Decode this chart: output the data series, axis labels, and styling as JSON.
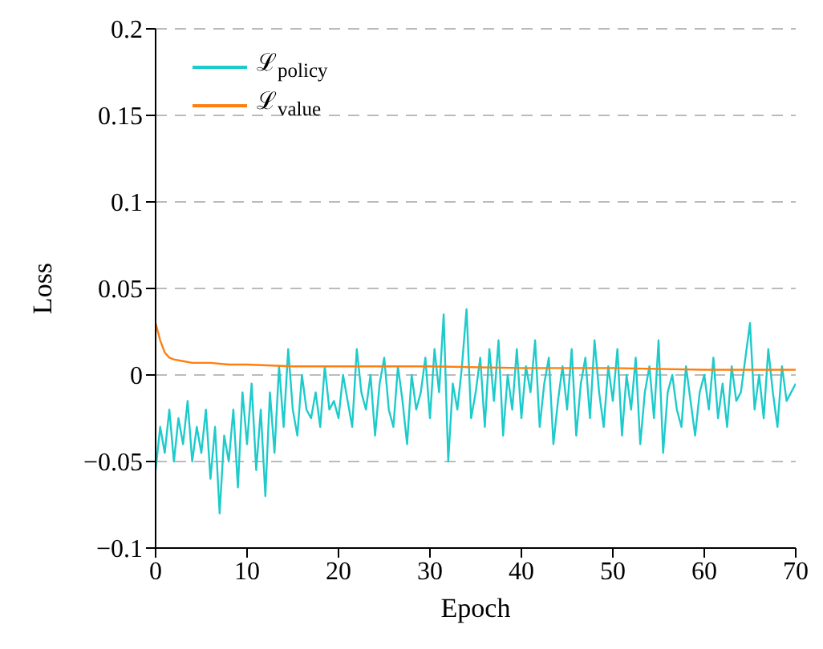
{
  "chart_data": {
    "type": "line",
    "xlabel": "Epoch",
    "ylabel": "Loss",
    "xlim": [
      0,
      70
    ],
    "ylim": [
      -0.1,
      0.2
    ],
    "xticks": [
      0,
      10,
      20,
      30,
      40,
      50,
      60,
      70
    ],
    "yticks": [
      {
        "value": -0.1,
        "label": "−0.1"
      },
      {
        "value": -0.05,
        "label": "−0.05"
      },
      0,
      0.05,
      0.1,
      0.15,
      0.2
    ],
    "grid": "y",
    "legend": "top left",
    "marker": "none",
    "line_style": "solid",
    "series": [
      {
        "name": "ℒ$_{policy}$",
        "color": "#1ecbcb",
        "x": [
          0,
          0.5,
          1,
          1.5,
          2,
          2.5,
          3,
          3.5,
          4,
          4.5,
          5,
          5.5,
          6,
          6.5,
          7,
          7.5,
          8,
          8.5,
          9,
          9.5,
          10,
          10.5,
          11,
          11.5,
          12,
          12.5,
          13,
          13.5,
          14,
          14.5,
          15,
          15.5,
          16,
          16.5,
          17,
          17.5,
          18,
          18.5,
          19,
          19.5,
          20,
          20.5,
          21,
          21.5,
          22,
          22.5,
          23,
          23.5,
          24,
          24.5,
          25,
          25.5,
          26,
          26.5,
          27,
          27.5,
          28,
          28.5,
          29,
          29.5,
          30,
          30.5,
          31,
          31.5,
          32,
          32.5,
          33,
          33.5,
          34,
          34.5,
          35,
          35.5,
          36,
          36.5,
          37,
          37.5,
          38,
          38.5,
          39,
          39.5,
          40,
          40.5,
          41,
          41.5,
          42,
          42.5,
          43,
          43.5,
          44,
          44.5,
          45,
          45.5,
          46,
          46.5,
          47,
          47.5,
          48,
          48.5,
          49,
          49.5,
          50,
          50.5,
          51,
          51.5,
          52,
          52.5,
          53,
          53.5,
          54,
          54.5,
          55,
          55.5,
          56,
          56.5,
          57,
          57.5,
          58,
          58.5,
          59,
          59.5,
          60,
          60.5,
          61,
          61.5,
          62,
          62.5,
          63,
          63.5,
          64,
          64.5,
          65,
          65.5,
          66,
          66.5,
          67,
          67.5,
          68,
          68.5,
          69,
          69.5,
          70
        ],
        "values": [
          -0.055,
          -0.03,
          -0.045,
          -0.02,
          -0.05,
          -0.025,
          -0.04,
          -0.015,
          -0.05,
          -0.03,
          -0.045,
          -0.02,
          -0.06,
          -0.03,
          -0.08,
          -0.035,
          -0.05,
          -0.02,
          -0.065,
          -0.01,
          -0.04,
          -0.005,
          -0.055,
          -0.02,
          -0.07,
          -0.01,
          -0.045,
          0.005,
          -0.03,
          0.015,
          -0.02,
          -0.035,
          0.0,
          -0.02,
          -0.025,
          -0.01,
          -0.03,
          0.005,
          -0.02,
          -0.015,
          -0.025,
          0.0,
          -0.015,
          -0.03,
          0.015,
          -0.01,
          -0.02,
          0.0,
          -0.035,
          -0.005,
          0.01,
          -0.02,
          -0.03,
          0.005,
          -0.015,
          -0.04,
          0.0,
          -0.02,
          -0.01,
          0.01,
          -0.025,
          0.015,
          -0.01,
          0.035,
          -0.05,
          -0.005,
          -0.02,
          0.005,
          0.038,
          -0.025,
          -0.01,
          0.01,
          -0.03,
          0.015,
          -0.015,
          0.02,
          -0.035,
          0.0,
          -0.02,
          0.015,
          -0.025,
          0.005,
          -0.01,
          0.02,
          -0.03,
          -0.005,
          0.01,
          -0.04,
          -0.015,
          0.005,
          -0.02,
          0.015,
          -0.035,
          -0.005,
          0.01,
          -0.025,
          0.02,
          -0.01,
          -0.03,
          0.005,
          -0.015,
          0.015,
          -0.035,
          0.0,
          -0.02,
          0.01,
          -0.04,
          -0.01,
          0.005,
          -0.025,
          0.02,
          -0.045,
          -0.01,
          0.0,
          -0.02,
          -0.03,
          0.005,
          -0.015,
          -0.035,
          -0.01,
          0.0,
          -0.02,
          0.01,
          -0.025,
          -0.005,
          -0.03,
          0.005,
          -0.015,
          -0.01,
          0.01,
          0.03,
          -0.02,
          0.0,
          -0.025,
          0.015,
          -0.01,
          -0.03,
          0.005,
          -0.015,
          -0.01,
          -0.005
        ]
      },
      {
        "name": "ℒ$_{value}$",
        "color": "#ff7f0e",
        "x": [
          0,
          0.5,
          1,
          1.5,
          2,
          3,
          4,
          6,
          8,
          10,
          15,
          20,
          30,
          40,
          50,
          60,
          70
        ],
        "values": [
          0.03,
          0.02,
          0.013,
          0.01,
          0.009,
          0.008,
          0.007,
          0.007,
          0.006,
          0.006,
          0.005,
          0.005,
          0.005,
          0.004,
          0.004,
          0.003,
          0.003
        ]
      }
    ]
  }
}
